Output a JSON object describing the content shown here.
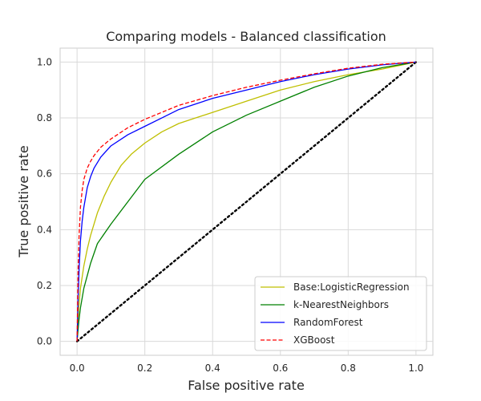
{
  "chart_data": {
    "type": "line",
    "title": "Comparing models - Balanced classification",
    "xlabel": "False positive rate",
    "ylabel": "True positive rate",
    "xlim": [
      -0.05,
      1.05
    ],
    "ylim": [
      -0.05,
      1.05
    ],
    "xticks": [
      0.0,
      0.2,
      0.4,
      0.6,
      0.8,
      1.0
    ],
    "yticks": [
      0.0,
      0.2,
      0.4,
      0.6,
      0.8,
      1.0
    ],
    "xtick_labels": [
      "0.0",
      "0.2",
      "0.4",
      "0.6",
      "0.8",
      "1.0"
    ],
    "ytick_labels": [
      "0.0",
      "0.2",
      "0.4",
      "0.6",
      "0.8",
      "1.0"
    ],
    "grid": true,
    "legend_position": "lower-right",
    "diagonal": {
      "color": "#000000",
      "style": "dotted"
    },
    "series": [
      {
        "name": "Base:LogisticRegression",
        "color": "#bfbf00",
        "style": "solid",
        "x": [
          0,
          0.005,
          0.01,
          0.02,
          0.03,
          0.04,
          0.06,
          0.08,
          0.1,
          0.13,
          0.16,
          0.2,
          0.25,
          0.3,
          0.35,
          0.4,
          0.5,
          0.6,
          0.7,
          0.8,
          0.9,
          1.0
        ],
        "y": [
          0,
          0.12,
          0.19,
          0.27,
          0.33,
          0.38,
          0.46,
          0.52,
          0.57,
          0.63,
          0.67,
          0.71,
          0.75,
          0.78,
          0.8,
          0.82,
          0.86,
          0.9,
          0.93,
          0.955,
          0.975,
          1.0
        ]
      },
      {
        "name": "k-NearestNeighbors",
        "color": "#008000",
        "style": "solid",
        "x": [
          0,
          0.005,
          0.01,
          0.02,
          0.04,
          0.06,
          0.1,
          0.15,
          0.2,
          0.3,
          0.4,
          0.5,
          0.6,
          0.7,
          0.8,
          0.9,
          1.0
        ],
        "y": [
          0,
          0.07,
          0.12,
          0.19,
          0.28,
          0.35,
          0.42,
          0.5,
          0.58,
          0.67,
          0.75,
          0.81,
          0.86,
          0.91,
          0.95,
          0.98,
          1.0
        ]
      },
      {
        "name": "RandomForest",
        "color": "#0000ff",
        "style": "solid",
        "x": [
          0,
          0.003,
          0.006,
          0.01,
          0.015,
          0.02,
          0.03,
          0.04,
          0.05,
          0.07,
          0.1,
          0.15,
          0.2,
          0.25,
          0.3,
          0.4,
          0.5,
          0.6,
          0.7,
          0.8,
          0.9,
          1.0
        ],
        "y": [
          0,
          0.15,
          0.26,
          0.36,
          0.43,
          0.48,
          0.55,
          0.59,
          0.62,
          0.66,
          0.7,
          0.74,
          0.77,
          0.8,
          0.83,
          0.87,
          0.9,
          0.93,
          0.955,
          0.975,
          0.99,
          1.0
        ]
      },
      {
        "name": "XGBoost",
        "color": "#ff0000",
        "style": "dashed",
        "x": [
          0,
          0.003,
          0.006,
          0.01,
          0.015,
          0.02,
          0.03,
          0.04,
          0.05,
          0.07,
          0.1,
          0.15,
          0.2,
          0.25,
          0.3,
          0.4,
          0.5,
          0.6,
          0.7,
          0.8,
          0.9,
          1.0
        ],
        "y": [
          0,
          0.25,
          0.38,
          0.48,
          0.54,
          0.58,
          0.62,
          0.645,
          0.665,
          0.695,
          0.725,
          0.765,
          0.795,
          0.82,
          0.845,
          0.88,
          0.91,
          0.935,
          0.958,
          0.978,
          0.992,
          1.0
        ]
      }
    ]
  }
}
